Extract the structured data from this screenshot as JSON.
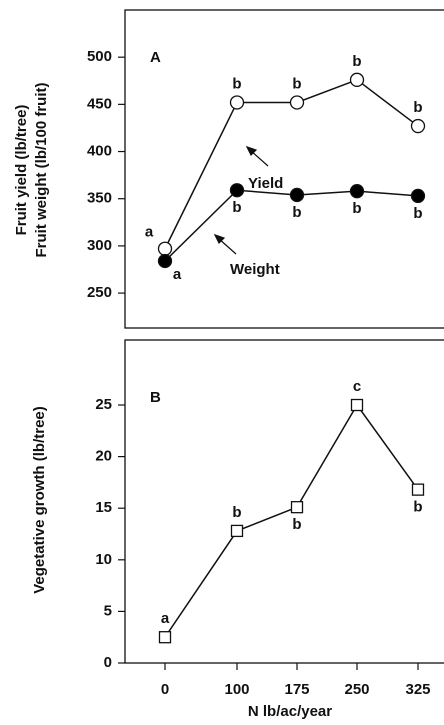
{
  "chart_data": [
    {
      "type": "line",
      "panel_label": "A",
      "ylabel": [
        "Fruit yield (lb/tree)",
        "Fruit weight (lb/100 fruit)"
      ],
      "categories": [
        null,
        null,
        null,
        null,
        null
      ],
      "series": [
        {
          "name": "Yield",
          "color": "#ffffff",
          "values": [
            297,
            452,
            452,
            476,
            427
          ],
          "labels": [
            "a",
            "b",
            "b",
            "b",
            "b"
          ]
        },
        {
          "name": "Weight",
          "color": "#000000",
          "values": [
            284,
            359,
            354,
            358,
            353
          ],
          "labels": [
            "a",
            "b",
            "b",
            "b",
            "b"
          ]
        }
      ],
      "ylim": [
        213,
        550
      ],
      "yticks": [
        250,
        300,
        350,
        400,
        450,
        500
      ]
    },
    {
      "type": "line",
      "panel_label": "B",
      "ylabel": "Vegetative growth (lb/tree)",
      "xlabel": "N lb/ac/year",
      "categories": [
        "0",
        "100",
        "175",
        "250",
        "325"
      ],
      "series": [
        {
          "color": "#ffffff",
          "values": [
            2.5,
            12.8,
            15.1,
            25,
            16.8
          ],
          "labels": [
            "a",
            "b",
            "b",
            "c",
            "b"
          ]
        }
      ],
      "ylim": [
        0,
        31.3
      ],
      "yticks": [
        0,
        5,
        10,
        15,
        20,
        25
      ]
    }
  ]
}
